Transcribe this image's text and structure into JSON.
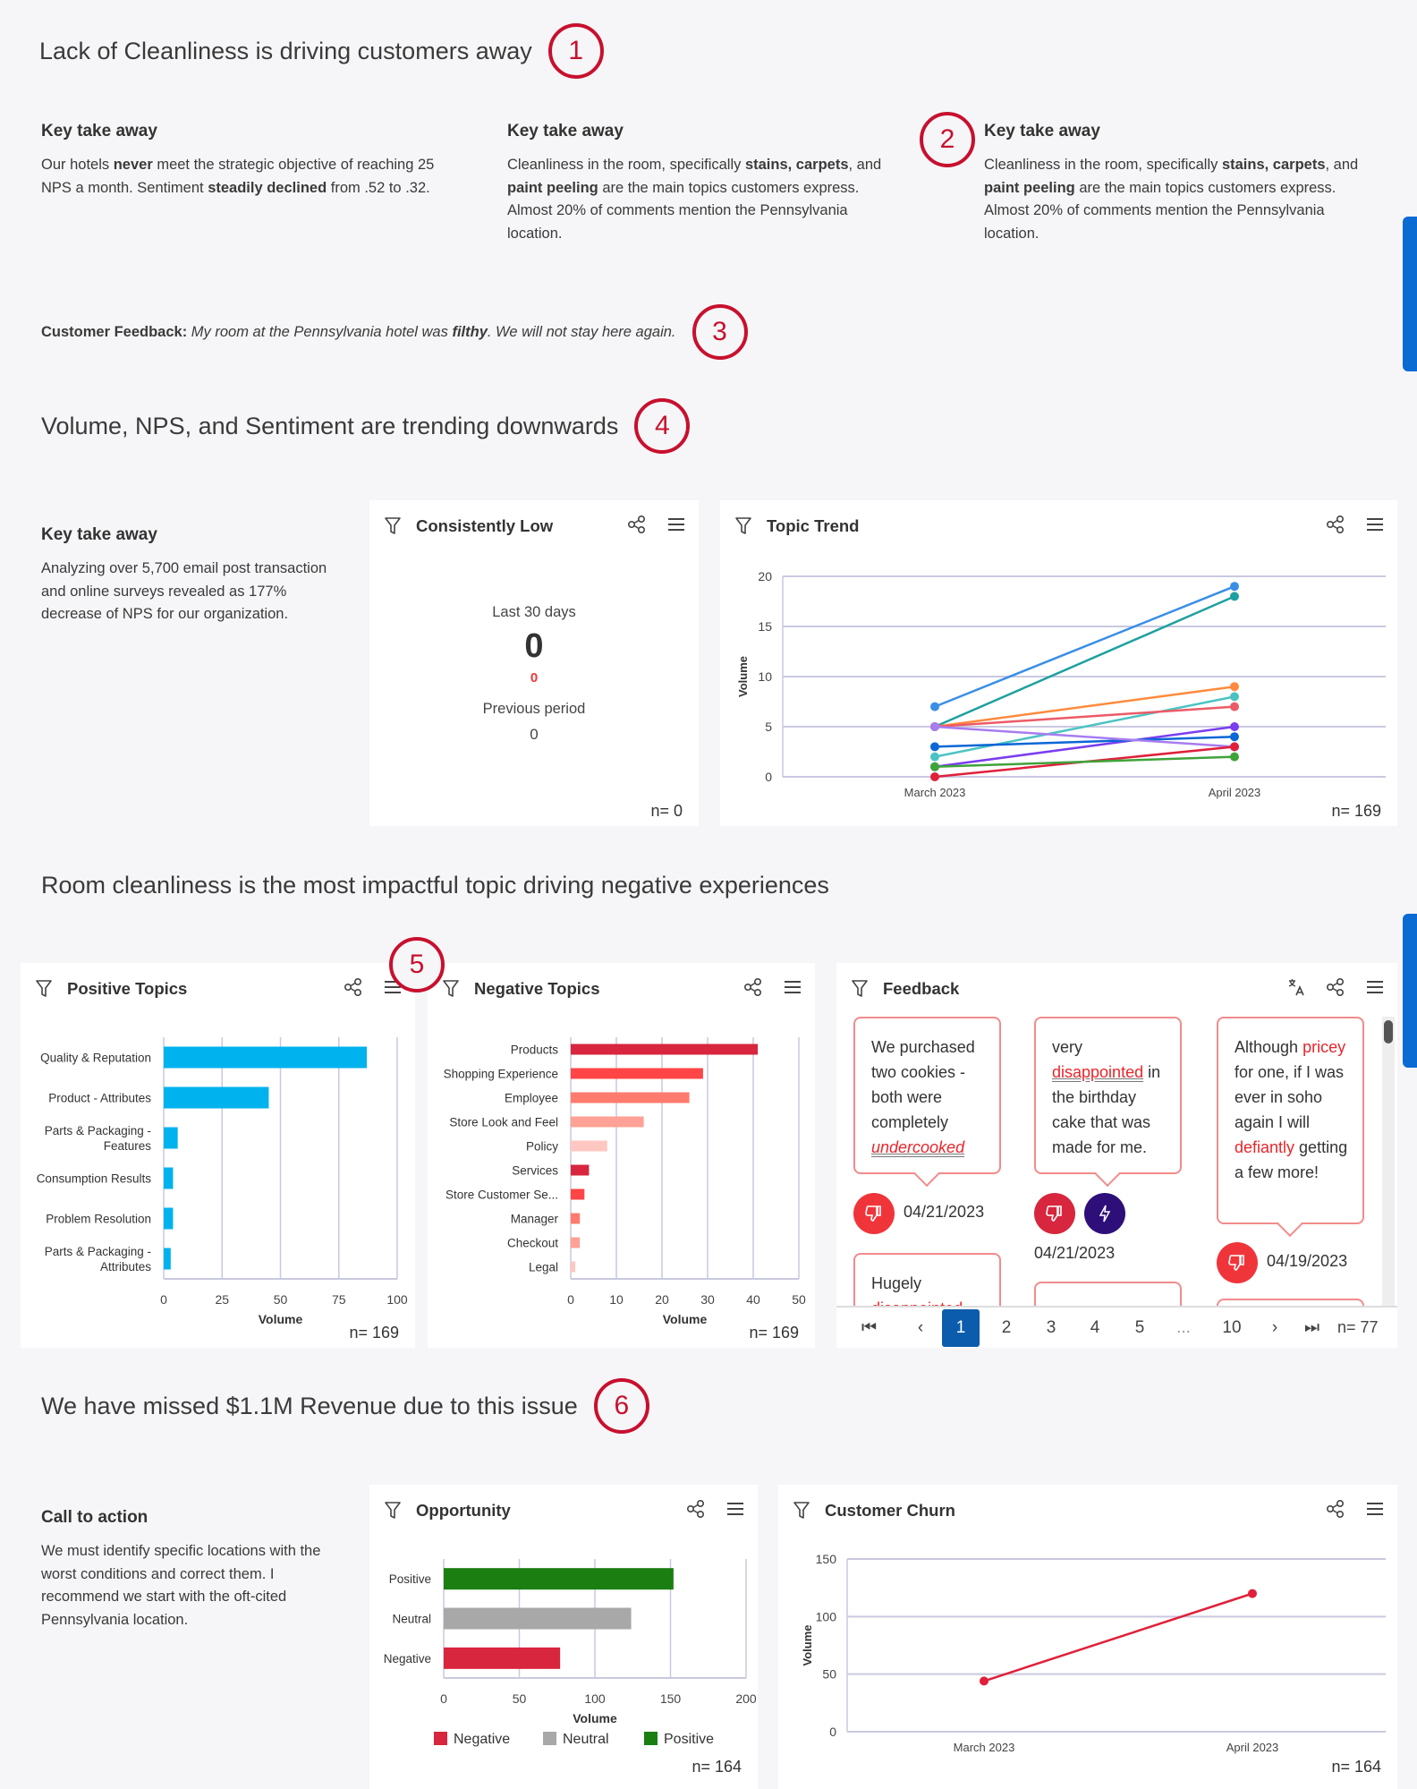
{
  "sections": {
    "s1_title": "Lack of Cleanliness is driving customers away",
    "s4_title": "Volume, NPS, and Sentiment are trending downwards",
    "s5_title": "Room cleanliness is the most impactful topic driving negative experiences",
    "s6_title": "We have missed $1.1M Revenue due to this issue"
  },
  "badges": [
    "1",
    "2",
    "3",
    "4",
    "5",
    "6"
  ],
  "takeaways": [
    {
      "heading": "Key take away",
      "parts": [
        "Our hotels ",
        "never",
        " meet the strategic objective of reaching 25 NPS a month. Sentiment ",
        "steadily declined",
        " from .52 to .32."
      ]
    },
    {
      "heading": "Key take away",
      "parts": [
        "Cleanliness in the room, specifically ",
        "stains, carpets",
        ", and ",
        "paint peeling",
        " are the main topics customers express. Almost 20% of comments mention the Pennsylvania location."
      ]
    },
    {
      "heading": "Key take away",
      "parts": [
        "Cleanliness in the room, specifically ",
        "stains, carpets",
        ", and ",
        "paint peeling",
        " are the main topics customers express. Almost 20% of comments mention the Pennsylvania location."
      ]
    }
  ],
  "customer_feedback": {
    "label": "Customer Feedback:",
    "parts": [
      " My room at the Pennsylvania hotel was ",
      "filthy",
      ". We will not stay here again."
    ]
  },
  "trend_takeaway": {
    "heading": "Key take away",
    "body": "Analyzing over 5,700 email post transaction and online surveys revealed as 177% decrease of NPS for our organization."
  },
  "cta": {
    "heading": "Call to action",
    "body": "We must identify specific locations with the worst conditions and correct them. I recommend we start with the oft-cited Pennsylvania location."
  },
  "consistently_low": {
    "title": "Consistently Low",
    "period_label": "Last 30 days",
    "value": "0",
    "change": "0",
    "previous_label": "Previous period",
    "previous_value": "0",
    "n": "n= 0",
    "change_color": "#f0353a"
  },
  "feedback": {
    "title": "Feedback",
    "n": "n= 77",
    "items": [
      {
        "parts": [
          "We purchased two cookies - both were completely ",
          ""
        ],
        "highlight": "undercooked",
        "date": "04/21/2023"
      },
      {
        "pre": "very ",
        "highlight": "disappointed",
        "post": " in the birthday cake that was made for me.",
        "date": "04/21/2023"
      },
      {
        "pre": "Although ",
        "highlight": "pricey",
        "mid": " for one, if I was ever in soho again I will ",
        "highlight2": "defiantly",
        "post": " getting a few more!",
        "date": "04/19/2023"
      },
      {
        "pre": "Hugely ",
        "highlight": "disappointed"
      }
    ],
    "pages": [
      "1",
      "2",
      "3",
      "4",
      "5",
      "...",
      "10"
    ],
    "current_page": "1"
  },
  "icons": {
    "filter": "filter-icon",
    "share": "share-icon",
    "menu": "hamburger-menu-icon",
    "translate": "translate-icon",
    "thumbs_down": "thumbs-down-icon",
    "lightning": "lightning-icon"
  },
  "colors": {
    "accent": "#0b5cad",
    "badge": "#c8102e",
    "highlight": "#e8262b"
  },
  "chart_data": [
    {
      "id": "topic_trend",
      "title": "Topic Trend",
      "type": "line",
      "ylabel": "Volume",
      "categories": [
        "March 2023",
        "April 2023"
      ],
      "ylim": [
        0,
        20
      ],
      "yticks": [
        0,
        5,
        10,
        15,
        20
      ],
      "grid": true,
      "n": "n= 169",
      "series": [
        {
          "values": [
            7,
            19
          ],
          "color": "#3a8ee6"
        },
        {
          "values": [
            5,
            18
          ],
          "color": "#1fa0a0"
        },
        {
          "values": [
            5,
            9
          ],
          "color": "#ff8a3d"
        },
        {
          "values": [
            2,
            8
          ],
          "color": "#4cc3c3"
        },
        {
          "values": [
            5,
            7
          ],
          "color": "#ec5b66"
        },
        {
          "values": [
            1,
            5
          ],
          "color": "#7a3df0"
        },
        {
          "values": [
            3,
            4
          ],
          "color": "#0b66d6"
        },
        {
          "values": [
            5,
            3
          ],
          "color": "#a77df0"
        },
        {
          "values": [
            0,
            3
          ],
          "color": "#e0203a"
        },
        {
          "values": [
            1,
            2
          ],
          "color": "#3fa33a"
        }
      ]
    },
    {
      "id": "positive_topics",
      "title": "Positive Topics",
      "type": "bar",
      "orientation": "horizontal",
      "xlabel": "Volume",
      "xlim": [
        0,
        100
      ],
      "xticks": [
        0,
        25,
        50,
        75,
        100
      ],
      "n": "n= 169",
      "categories": [
        "Quality & Reputation",
        "Product - Attributes",
        "Parts & Packaging - Features",
        "Consumption Results",
        "Problem Resolution",
        "Parts & Packaging - Attributes"
      ],
      "values": [
        87,
        45,
        6,
        4,
        4,
        3
      ],
      "colors": [
        "#00b2ee",
        "#00b2ee",
        "#00b2ee",
        "#00b2ee",
        "#00b2ee",
        "#00b2ee"
      ]
    },
    {
      "id": "negative_topics",
      "title": "Negative Topics",
      "type": "bar",
      "orientation": "horizontal",
      "xlabel": "Volume",
      "xlim": [
        0,
        50
      ],
      "xticks": [
        0,
        10,
        20,
        30,
        40,
        50
      ],
      "n": "n= 169",
      "categories": [
        "Products",
        "Shopping Experience",
        "Employee",
        "Store Look and Feel",
        "Policy",
        "Services",
        "Store Customer Se...",
        "Manager",
        "Checkout",
        "Legal"
      ],
      "values": [
        41,
        29,
        26,
        16,
        8,
        4,
        3,
        2,
        2,
        1
      ],
      "colors": [
        "#d7263d",
        "#ff4545",
        "#ff7b6e",
        "#ffa196",
        "#ffc7c1",
        "#d7263d",
        "#ff4545",
        "#ff7b6e",
        "#ffa196",
        "#ffc7c1"
      ]
    },
    {
      "id": "opportunity",
      "title": "Opportunity",
      "type": "bar",
      "orientation": "horizontal",
      "xlabel": "Volume",
      "xlim": [
        0,
        200
      ],
      "xticks": [
        0,
        50,
        100,
        150,
        200
      ],
      "n": "n= 164",
      "categories": [
        "Positive",
        "Neutral",
        "Negative"
      ],
      "values": [
        152,
        124,
        77
      ],
      "colors": [
        "#1a7f10",
        "#a8a8a8",
        "#d7263d"
      ],
      "legend": [
        {
          "name": "Negative",
          "color": "#d7263d"
        },
        {
          "name": "Neutral",
          "color": "#a8a8a8"
        },
        {
          "name": "Positive",
          "color": "#1a7f10"
        }
      ],
      "legend_position": "bottom"
    },
    {
      "id": "customer_churn",
      "title": "Customer Churn",
      "type": "line",
      "ylabel": "Volume",
      "categories": [
        "March 2023",
        "April 2023"
      ],
      "ylim": [
        0,
        150
      ],
      "yticks": [
        0,
        50,
        100,
        150
      ],
      "grid": true,
      "n": "n= 164",
      "series": [
        {
          "values": [
            44,
            120
          ],
          "color": "#e0203a"
        }
      ]
    }
  ]
}
